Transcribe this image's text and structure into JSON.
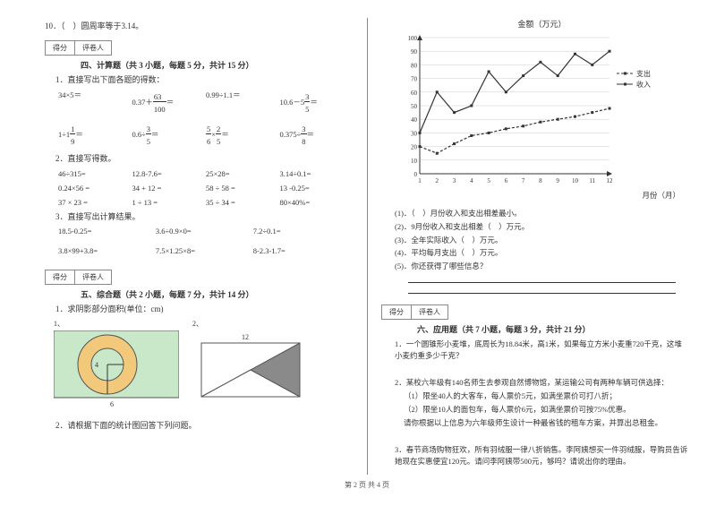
{
  "left": {
    "q10": "10．（　）圆周率等于3.14。",
    "score_label1": "得分",
    "score_label2": "评卷人",
    "section4_title": "四、计算题（共 3 小题，每题 5 分，共计 15 分）",
    "calc1_title": "1．直接写出下面各题的得数：",
    "calc1_row1": [
      "34×5＝",
      "0.37＋63/100＝",
      "0.99÷1.1＝",
      "10.6－5⅗＝"
    ],
    "calc1_row2": [
      "1÷1⅑＝",
      "0.6÷⅗＝",
      "⅚×⅖＝",
      "0.375÷⅜＝"
    ],
    "calc2_title": "2．直接写得数。",
    "calc2_rows": [
      [
        "46÷315=",
        "12.8-7.6=",
        "25×28=",
        "3.14÷0.1="
      ],
      [
        "0.24×56 =",
        "34 + 12 =",
        "58 ÷ 58 =",
        "13 -0.25="
      ],
      [
        "37 × 23 =",
        "1 ÷ 13 =",
        "35 ÷ 34 =",
        "80×40%="
      ]
    ],
    "calc3_title": "3．直接写出计算结果。",
    "calc3_rows": [
      [
        "18.5-0.25=",
        "3.6÷0.9×0=",
        "7.2÷0.1="
      ],
      [
        "3.8×99+3.8=",
        "7.5×1.25×8=",
        "8-2.3-1.7="
      ]
    ],
    "section5_title": "五、综合题（共 2 小题，每题 7 分，共计 14 分）",
    "comp1": "1．求阴影部分面积(单位：cm)",
    "fig1_label": "1、",
    "fig2_label": "2、",
    "fig2_dim_top": "12",
    "fig1_outer_r": "6",
    "fig1_inner_r": "4",
    "comp2": "2．请根据下面的统计图回答下列问题。"
  },
  "right": {
    "chart": {
      "y_title": "金额（万元）",
      "x_title": "月份（月）",
      "y_max": 100,
      "y_ticks": [
        0,
        10,
        20,
        30,
        40,
        50,
        60,
        70,
        80,
        90,
        100
      ],
      "x_ticks": [
        1,
        2,
        3,
        4,
        5,
        6,
        7,
        8,
        9,
        10,
        11,
        12
      ],
      "series_income": {
        "label": "收入",
        "style": "solid",
        "values": [
          30,
          60,
          45,
          50,
          75,
          60,
          72,
          82,
          72,
          88,
          80,
          90
        ]
      },
      "series_expense": {
        "label": "支出",
        "style": "dashed",
        "values": [
          20,
          15,
          22,
          28,
          30,
          33,
          35,
          38,
          40,
          42,
          45,
          48
        ]
      },
      "grid_color": "#cccccc",
      "axis_color": "#333333",
      "line_color": "#333333"
    },
    "chart_q": [
      "(1)．（　）月份收入和支出相差最小。",
      "(2)．9月份收入和支出相差（　）万元。",
      "(3)．全年实际收入（　）万元。",
      "(4)．平均每月支出（　）万元。",
      "(5)．你还获得了哪些信息？"
    ],
    "score_label1": "得分",
    "score_label2": "评卷人",
    "section6_title": "六、应用题（共 7 小题，每题 3 分，共计 21 分）",
    "app1": "1．一个圆锥形小麦堆，底周长为18.84米，高1米，如果每立方米小麦重720千克，这堆小麦约重多少千克？",
    "app2_intro": "2．某校六年级有140名师生去参观自然博物馆，某运输公司有两种车辆可供选择：",
    "app2_a": "（1）限坐40人的大客车，每人票价5元，如满坐票价可打八折；",
    "app2_b": "（2）限坐10人的面包车，每人票价6元，如满坐票价可按75%优惠。",
    "app2_c": "请你根据以上信息为六年级师生设计一种最省钱的租车方案，并算出总租金。",
    "app3": "3．春节商场购物狂欢，所有羽绒服一律八折销售。李阿姨想买一件羽绒服，导购员告诉她现在实惠便宜120元。请问李阿姨带500元，够吗？请说出你的理由。"
  },
  "footer": "第 2 页 共 4 页"
}
